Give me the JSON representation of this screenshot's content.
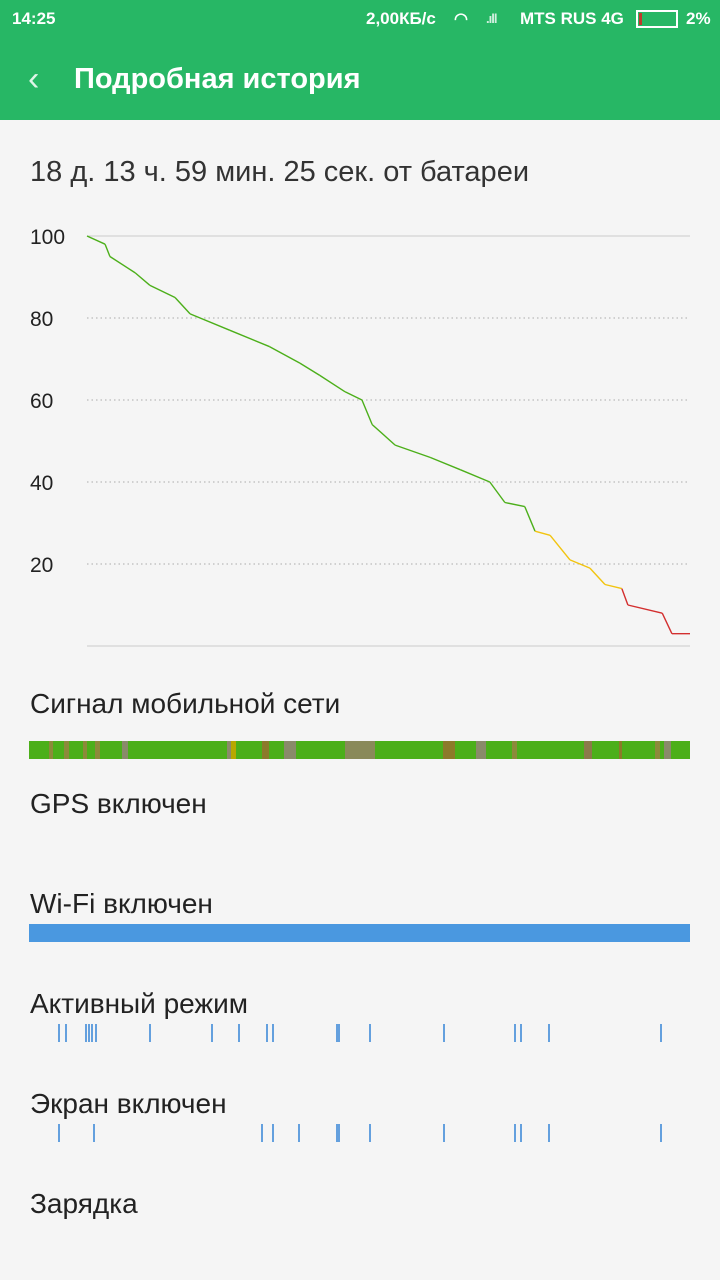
{
  "status_bar": {
    "time": "14:25",
    "speed": "2,00КБ/с",
    "carrier": "MTS RUS 4G",
    "battery": "2%",
    "icons": [
      "wifi-icon",
      "signal-icon",
      "battery-icon"
    ]
  },
  "header": {
    "title": "Подробная история",
    "back_icon": "chevron-left-icon"
  },
  "summary": "18 д. 13 ч. 59 мин. 25 сек. от батареи",
  "chart_data": {
    "type": "line",
    "ylim": [
      0,
      100
    ],
    "yticks": [
      "100",
      "80",
      "60",
      "40",
      "20"
    ],
    "x": [
      0,
      3,
      3.8,
      8,
      10.4,
      14.6,
      17.1,
      23.7,
      30.3,
      35.3,
      38.6,
      42.8,
      45.6,
      47.3,
      51.1,
      56.9,
      61.9,
      66.8,
      69.3,
      72.6,
      74.3,
      76.8,
      80.1,
      83.4,
      85.9,
      88.7,
      89.7,
      95.4,
      97,
      100
    ],
    "y": [
      100,
      98,
      95,
      91,
      88,
      85,
      81,
      77,
      73,
      69,
      66,
      62,
      60,
      54,
      49,
      46,
      43,
      40,
      35,
      34,
      28,
      27,
      21,
      19,
      15,
      14,
      10,
      8,
      3,
      3
    ],
    "colors": {
      "high": "#4caf1a",
      "medium": "#f2c40f",
      "low": "#d32f2f"
    },
    "thresholds": {
      "medium": 28,
      "low": 14
    },
    "grid": true
  },
  "rows": {
    "signal": {
      "label": "Сигнал мобильной сети",
      "base_color": "#4caf1a",
      "segments": [
        [
          3.0,
          0.7,
          "#8c8a3a"
        ],
        [
          5.3,
          0.7,
          "#8c8a3a"
        ],
        [
          8.1,
          0.7,
          "#8c8a3a"
        ],
        [
          10.0,
          0.7,
          "#8c8a3a"
        ],
        [
          14.0,
          1.0,
          "#8a8a6a"
        ],
        [
          29.9,
          0.7,
          "#8a8a6a"
        ],
        [
          30.6,
          0.7,
          "#b8a800"
        ],
        [
          35.2,
          1.1,
          "#8c7a2a"
        ],
        [
          38.6,
          1.8,
          "#8a8a6a"
        ],
        [
          47.8,
          4.6,
          "#8a8a5a"
        ],
        [
          62.6,
          1.8,
          "#8c7a2a"
        ],
        [
          67.6,
          1.5,
          "#8a8a6a"
        ],
        [
          73.1,
          0.7,
          "#8c8a3a"
        ],
        [
          83.9,
          1.3,
          "#8c7a4a"
        ],
        [
          89.2,
          0.5,
          "#8c7a2a"
        ],
        [
          94.7,
          0.7,
          "#8c8a3a"
        ],
        [
          96.1,
          1.1,
          "#8a8a6a"
        ]
      ]
    },
    "gps": {
      "label": "GPS включен"
    },
    "wifi": {
      "label": "Wi-Fi включен",
      "color": "#4a98e0",
      "on_fraction": 1
    },
    "active": {
      "label": "Активный режим",
      "ticks": [
        4.4,
        5.4,
        8.5,
        8.9,
        9.4,
        10.0,
        18.2,
        27.5,
        31.6,
        35.9,
        36.8,
        46.4,
        46.7,
        51.4,
        62.6,
        73.4,
        74.3,
        78.5,
        95.5
      ]
    },
    "screen": {
      "label": "Экран включен",
      "ticks": [
        4.4,
        9.7,
        35.1,
        36.8,
        40.7,
        46.4,
        46.7,
        51.4,
        62.6,
        73.4,
        74.3,
        78.5,
        95.5
      ]
    },
    "charging": {
      "label": "Зарядка"
    }
  }
}
